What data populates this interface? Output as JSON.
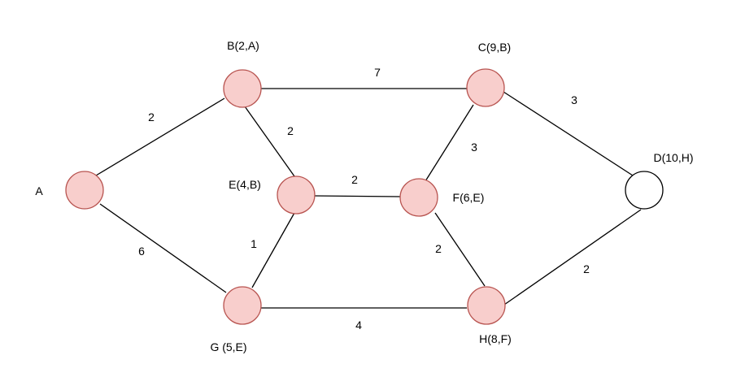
{
  "colors": {
    "visited_fill": "#f8cecc",
    "visited_stroke": "#b85450",
    "unvisited_fill": "#ffffff",
    "unvisited_stroke": "#000000",
    "edge": "#000000",
    "text": "#000000"
  },
  "nodes": {
    "A": {
      "label": "A",
      "visited": true
    },
    "B": {
      "label": "B(2,A)",
      "visited": true
    },
    "C": {
      "label": "C(9,B)",
      "visited": true
    },
    "D": {
      "label": "D(10,H)",
      "visited": false
    },
    "E": {
      "label": "E(4,B)",
      "visited": true
    },
    "F": {
      "label": "F(6,E)",
      "visited": true
    },
    "G": {
      "label": "G (5,E)",
      "visited": true
    },
    "H": {
      "label": "H(8,F)",
      "visited": true
    }
  },
  "edges": [
    {
      "from": "A",
      "to": "B",
      "weight": "2"
    },
    {
      "from": "A",
      "to": "G",
      "weight": "6"
    },
    {
      "from": "B",
      "to": "C",
      "weight": "7"
    },
    {
      "from": "B",
      "to": "E",
      "weight": "2"
    },
    {
      "from": "C",
      "to": "F",
      "weight": "3"
    },
    {
      "from": "C",
      "to": "D",
      "weight": "3"
    },
    {
      "from": "E",
      "to": "F",
      "weight": "2"
    },
    {
      "from": "E",
      "to": "G",
      "weight": "1"
    },
    {
      "from": "F",
      "to": "H",
      "weight": "2"
    },
    {
      "from": "G",
      "to": "H",
      "weight": "4"
    },
    {
      "from": "H",
      "to": "D",
      "weight": "2"
    }
  ]
}
